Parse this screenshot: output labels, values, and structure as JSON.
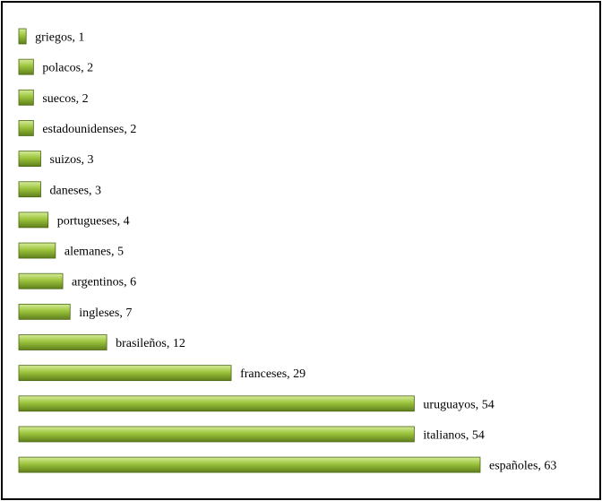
{
  "chart_data": {
    "type": "bar",
    "orientation": "horizontal",
    "categories": [
      "griegos",
      "polacos",
      "suecos",
      "estadounidenses",
      "suizos",
      "daneses",
      "portugueses",
      "alemanes",
      "argentinos",
      "ingleses",
      "brasileños",
      "franceses",
      "uruguayos",
      "italianos",
      "españoles"
    ],
    "values": [
      1,
      2,
      2,
      2,
      3,
      3,
      4,
      5,
      6,
      7,
      12,
      29,
      54,
      54,
      63
    ],
    "data_labels": [
      "griegos, 1",
      "polacos, 2",
      "suecos, 2",
      "estadounidenses, 2",
      "suizos, 3",
      "daneses, 3",
      "portugueses, 4",
      "alemanes, 5",
      "argentinos, 6",
      "ingleses, 7",
      "brasileños, 12",
      "franceses, 29",
      "uruguayos, 54",
      "italianos, 54",
      "españoles, 63"
    ],
    "title": "",
    "xlabel": "",
    "ylabel": "",
    "xlim": [
      0,
      63
    ],
    "grid": false,
    "legend": "none",
    "colors": {
      "bar_light": "#d6ec9a",
      "bar_mid": "#9cc43c",
      "bar_dark": "#5f7f1c",
      "bar_edge": "#4a6612"
    }
  }
}
